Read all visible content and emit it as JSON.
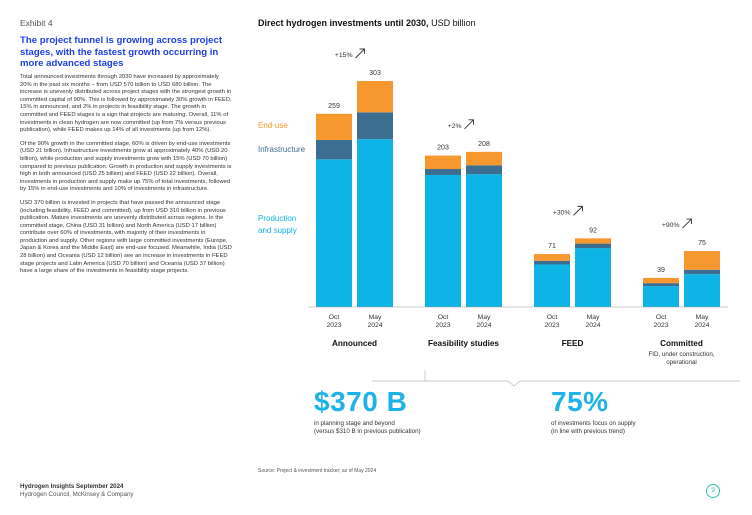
{
  "exhibit": "Exhibit 4",
  "headline": "The project funnel is growing across project stages, with the fastest growth occurring in more advanced stages",
  "paragraphs": [
    "Total announced investments through 2030 have increased by approximately 20% in the past six months – from USD 570 billion to USD 680 billion. The increase is unevenly distributed across project stages with the strongest growth in committed capital of 90%. This is followed by approximately 30% growth in FEED, 15% in announced, and 2% in projects in feasibility stage. The growth in committed and FEED stages is a sign that projects are maturing. Overall, 11% of investments in clean hydrogen are now committed (up from 7% versus previous publication), while FEED makes up 14% of all investments (up from 12%).",
    "Of the 90% growth in the committed stage, 60% is driven by end-use investments (USD 21 billion). Infrastructure investments grow at approximately 40% (USD 20 billion), while production and supply investments grow with 15% (USD 70 billion) compared to previous publication. Growth in production and supply investments is high in both announced (USD 25 billion) and FEED (USD 22 billion). Overall, investments in production and supply make up 75% of total investments, followed by 15% in end-use investments and 10% of investments in infrastructure.",
    "USD 370 billion is invested in projects that have passed the announced stage (including feasibility, FEED and committed), up from USD 310 billion in previous publication. Mature investments are unevenly distributed across regions. In the committed stage, China (USD 31 billion) and North America (USD 17 billion) contribute over 60% of investments, with majority of their investments in production and supply. Other regions with large committed investments (Europe, Japan & Korea and the Middle East) are end-use focused. Meanwhile, India (USD 28 billion) and Oceania (USD 12 billion) see an increase in investments in FEED stage projects and Latin America (USD 70 billion) and Oceania (USD 37 billion) have a large share of the investments in feasibility stage projects."
  ],
  "chart_title_bold": "Direct hydrogen investments until 2030,",
  "chart_title_unit": " USD billion",
  "chart_data": {
    "type": "bar",
    "stacked": true,
    "ylim": [
      0,
      303
    ],
    "series_order": [
      "Production and supply",
      "Infrastructure",
      "End-use"
    ],
    "colors": {
      "Production and supply": "#0fb4e6",
      "Infrastructure": "#3c6e91",
      "End-use": "#f7982f"
    },
    "legend": [
      {
        "name": "End-use",
        "lines": [
          "End-use"
        ]
      },
      {
        "name": "Infrastructure",
        "lines": [
          "Infrastructure"
        ]
      },
      {
        "name": "Production and supply",
        "lines": [
          "Production",
          "and supply"
        ]
      }
    ],
    "groups": [
      {
        "name": "Announced",
        "subtitle": "",
        "growth": "+15%",
        "bars": [
          {
            "label": [
              "Oct",
              "2023"
            ],
            "total": "259",
            "values": [
              198,
              26,
              35
            ]
          },
          {
            "label": [
              "May",
              "2024"
            ],
            "total": "303",
            "values": [
              225,
              36,
              42
            ]
          }
        ]
      },
      {
        "name": "Feasibility studies",
        "subtitle": "",
        "growth": "+2%",
        "bars": [
          {
            "label": [
              "Oct",
              "2023"
            ],
            "total": "203",
            "values": [
              177,
              8,
              18
            ]
          },
          {
            "label": [
              "May",
              "2024"
            ],
            "total": "208",
            "values": [
              178,
              12,
              18
            ]
          }
        ]
      },
      {
        "name": "FEED",
        "subtitle": "",
        "growth": "+30%",
        "bars": [
          {
            "label": [
              "Oct",
              "2023"
            ],
            "total": "71",
            "values": [
              57,
              5,
              9
            ]
          },
          {
            "label": [
              "May",
              "2024"
            ],
            "total": "92",
            "values": [
              79,
              6,
              7
            ]
          }
        ]
      },
      {
        "name": "Committed",
        "subtitle": "FID, under construction, operational",
        "growth": "+90%",
        "bars": [
          {
            "label": [
              "Oct",
              "2023"
            ],
            "total": "39",
            "values": [
              28,
              4,
              7
            ]
          },
          {
            "label": [
              "May",
              "2024"
            ],
            "total": "75",
            "values": [
              44,
              6,
              25
            ]
          }
        ]
      }
    ]
  },
  "kpis": [
    {
      "value": "$370 B",
      "line1": "in planning stage and beyond",
      "line2": "(versus $310 B in previous publication)"
    },
    {
      "value": "75%",
      "line1": "of investments focus on supply",
      "line2": "(in line with previous trend)"
    }
  ],
  "source": "Source: Project & investment tracker; as of May 2024",
  "footer_line1": "Hydrogen Insights September 2024",
  "footer_line2": "Hydrogen Council, McKinsey & Company",
  "page_number": "9"
}
